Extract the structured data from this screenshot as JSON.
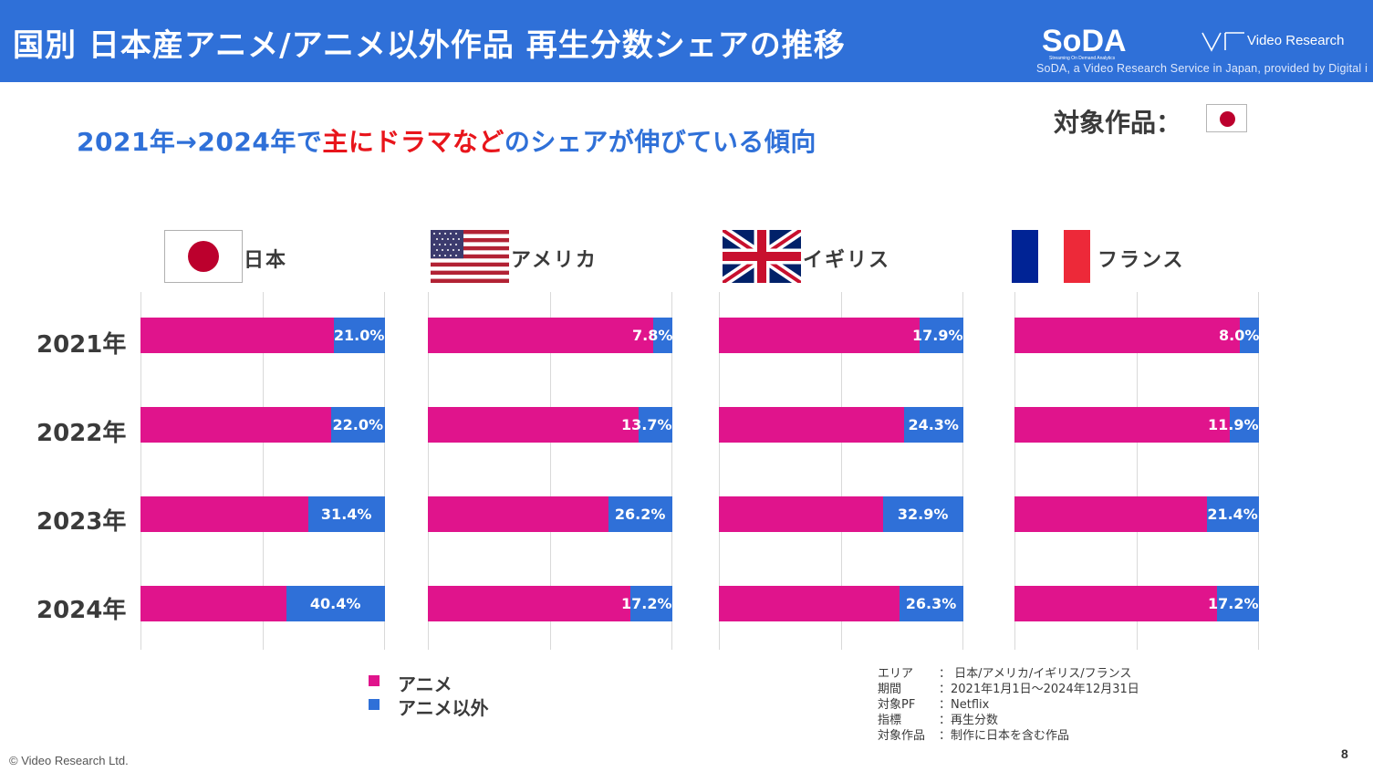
{
  "header": {
    "title": "国別 日本産アニメ/アニメ以外作品 再生分数シェアの推移",
    "soda_logo": "SoDA",
    "soda_tagline": "Streaming On Demand Analytics",
    "vr_name": "Video Research",
    "soda_credit": "SoDA, a Video Research Service in Japan, provided by Digital i"
  },
  "subtitle": {
    "part1": "2021年→2024年で",
    "highlight1": "主に",
    "highlight2": "ドラマなど",
    "part2": "のシェアが伸びている傾向"
  },
  "target": {
    "label": "対象作品：",
    "flag_icon": "japan-flag-icon"
  },
  "years": [
    "2021年",
    "2022年",
    "2023年",
    "2024年"
  ],
  "legend": {
    "anime_label": "アニメ",
    "other_label": "アニメ以外",
    "anime_color": "#e0148c",
    "other_color": "#2f70d8"
  },
  "notes": [
    {
      "key": "エリア",
      "value": "： 日本/アメリカ/イギリス/フランス"
    },
    {
      "key": "期間",
      "value": "：2021年1月1日～2024年12月31日"
    },
    {
      "key": "対象PF",
      "value": "：Netflix"
    },
    {
      "key": "指標",
      "value": "：再生分数"
    },
    {
      "key": "対象作品",
      "value": "：制作に日本を含む作品"
    }
  ],
  "footer": {
    "copyright": "© Video Research Ltd.",
    "page_number": "8"
  },
  "chart_data": {
    "type": "bar",
    "orientation": "horizontal-stacked-100",
    "categories": [
      "2021年",
      "2022年",
      "2023年",
      "2024年"
    ],
    "grid": true,
    "legend_position": "bottom-left",
    "panels": [
      {
        "country": "日本",
        "flag_icon": "japan-flag-icon",
        "series": [
          {
            "name": "アニメ",
            "values": [
              79.0,
              78.0,
              68.6,
              59.6
            ]
          },
          {
            "name": "アニメ以外",
            "values": [
              21.0,
              22.0,
              31.4,
              40.4
            ]
          }
        ],
        "labels": [
          "21.0%",
          "22.0%",
          "31.4%",
          "40.4%"
        ]
      },
      {
        "country": "アメリカ",
        "flag_icon": "usa-flag-icon",
        "series": [
          {
            "name": "アニメ",
            "values": [
              92.2,
              86.3,
              73.8,
              82.8
            ]
          },
          {
            "name": "アニメ以外",
            "values": [
              7.8,
              13.7,
              26.2,
              17.2
            ]
          }
        ],
        "labels": [
          "7.8%",
          "13.7%",
          "26.2%",
          "17.2%"
        ]
      },
      {
        "country": "イギリス",
        "flag_icon": "uk-flag-icon",
        "series": [
          {
            "name": "アニメ",
            "values": [
              82.1,
              75.7,
              67.1,
              73.7
            ]
          },
          {
            "name": "アニメ以外",
            "values": [
              17.9,
              24.3,
              32.9,
              26.3
            ]
          }
        ],
        "labels": [
          "17.9%",
          "24.3%",
          "32.9%",
          "26.3%"
        ]
      },
      {
        "country": "フランス",
        "flag_icon": "france-flag-icon",
        "series": [
          {
            "name": "アニメ",
            "values": [
              92.0,
              88.1,
              78.6,
              82.8
            ]
          },
          {
            "name": "アニメ以外",
            "values": [
              8.0,
              11.9,
              21.4,
              17.2
            ]
          }
        ],
        "labels": [
          "8.0%",
          "11.9%",
          "21.4%",
          "17.2%"
        ]
      }
    ]
  }
}
